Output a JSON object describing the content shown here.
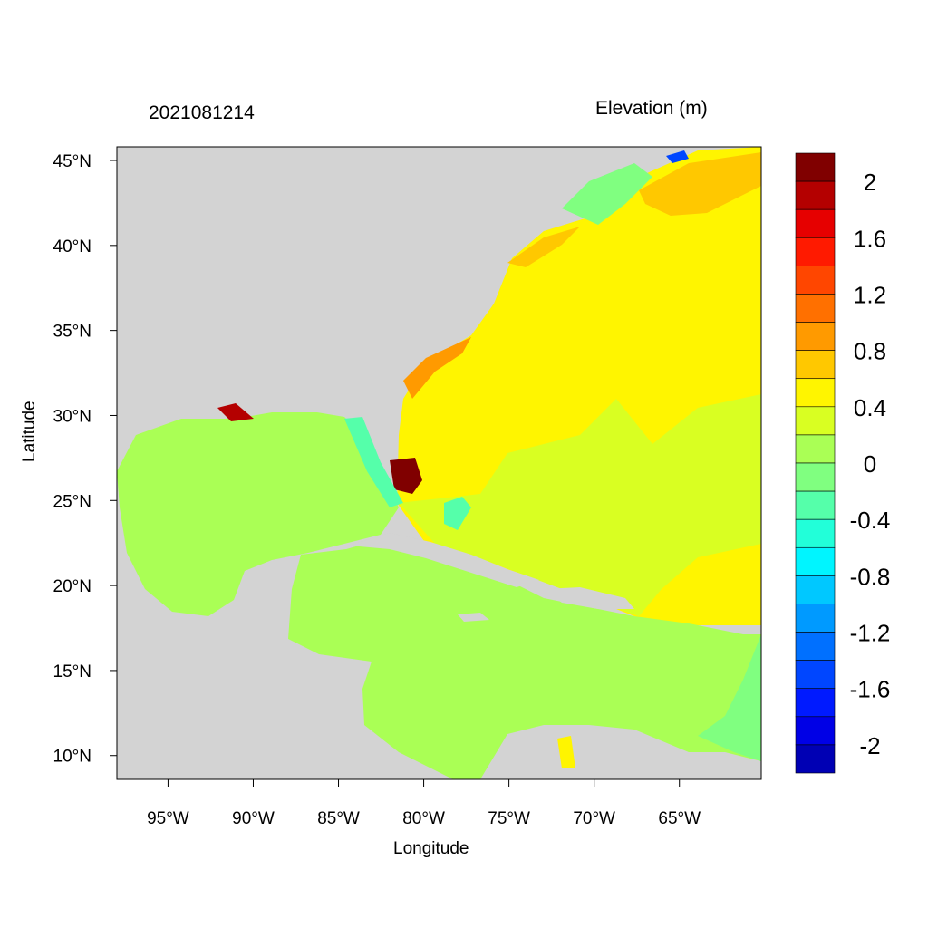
{
  "title_left": "2021081214",
  "title_right": "Elevation (m)",
  "xlabel": "Longitude",
  "ylabel": "Latitude",
  "chart_data": {
    "type": "heatmap",
    "title": "2021081214",
    "subtitle": "Elevation (m)",
    "xlabel": "Longitude",
    "ylabel": "Latitude",
    "xlim": [
      -98.0,
      -60.2
    ],
    "ylim": [
      8.6,
      45.8
    ],
    "x_ticks": [
      -95,
      -90,
      -85,
      -80,
      -75,
      -70,
      -65
    ],
    "x_tick_labels": [
      "95°W",
      "90°W",
      "85°W",
      "80°W",
      "75°W",
      "70°W",
      "65°W"
    ],
    "y_ticks": [
      10,
      15,
      20,
      25,
      30,
      35,
      40,
      45
    ],
    "y_tick_labels": [
      "10°N",
      "15°N",
      "20°N",
      "25°N",
      "30°N",
      "35°N",
      "40°N",
      "45°N"
    ],
    "colorbar": {
      "label_values": [
        2,
        1.6,
        1.2,
        0.8,
        0.4,
        0,
        -0.4,
        -0.8,
        -1.2,
        -1.6,
        -2
      ],
      "labels": [
        "2",
        "1.6",
        "1.2",
        "0.8",
        "0.4",
        "0",
        "-0.4",
        "-0.8",
        "-1.2",
        "-1.6",
        "-2"
      ],
      "colors": [
        "#800000",
        "#b40000",
        "#e60000",
        "#ff1a00",
        "#ff4600",
        "#ff7000",
        "#ff9a00",
        "#ffc800",
        "#fff500",
        "#d9ff22",
        "#aaff55",
        "#80ff80",
        "#55ffaa",
        "#22ffd9",
        "#00f5ff",
        "#00c8ff",
        "#009aff",
        "#0070ff",
        "#0046ff",
        "#001aff",
        "#0000e6",
        "#0000b4"
      ]
    },
    "land_color": "#d3d3d3"
  }
}
